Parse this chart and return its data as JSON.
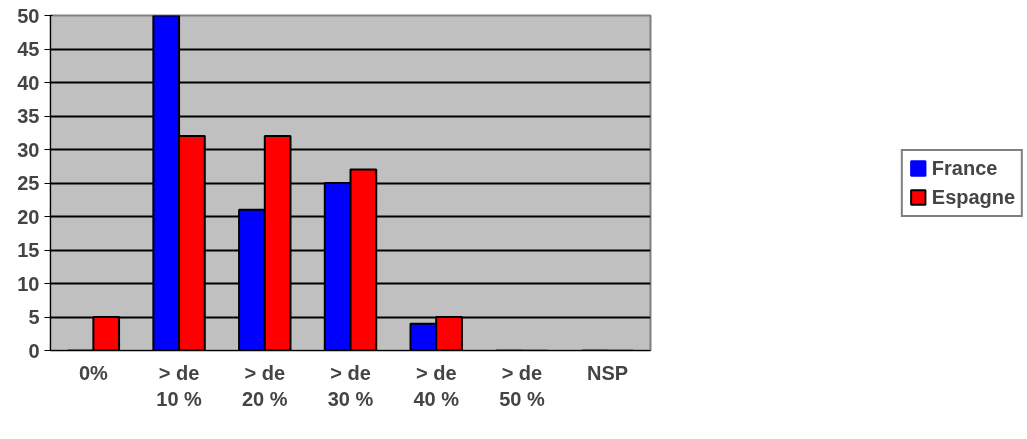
{
  "chart_data": {
    "type": "bar",
    "categories": [
      "0%",
      "> de\n10 %",
      "> de\n20 %",
      "> de\n30 %",
      "> de\n40 %",
      "> de\n50 %",
      "NSP"
    ],
    "series": [
      {
        "name": "France",
        "color": "#0000ff",
        "values": [
          0,
          50,
          21,
          25,
          4,
          0,
          0
        ]
      },
      {
        "name": "Espagne",
        "color": "#ff0000",
        "values": [
          5,
          32,
          32,
          27,
          5,
          0,
          0
        ]
      }
    ],
    "ylim": [
      0,
      50
    ],
    "yticks": [
      0,
      5,
      10,
      15,
      20,
      25,
      30,
      35,
      40,
      45,
      50
    ],
    "grid": "y",
    "legend": "right"
  }
}
